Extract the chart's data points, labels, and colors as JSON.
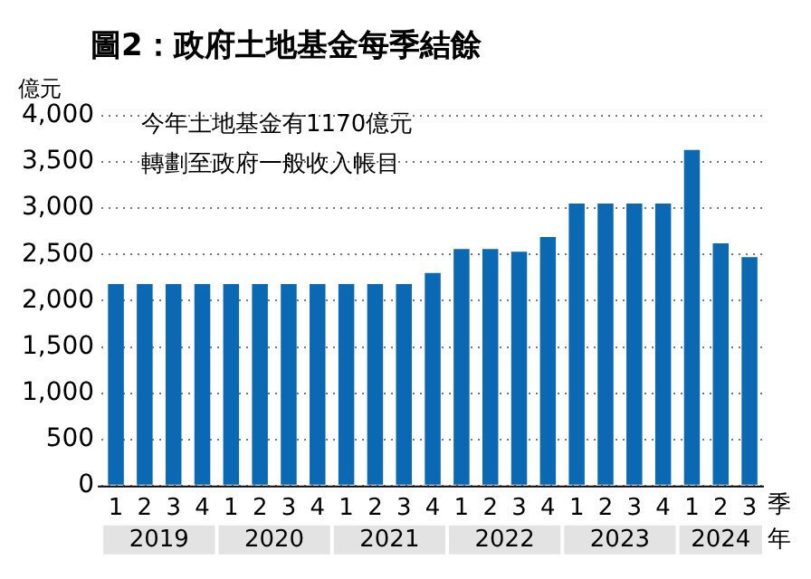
{
  "chart_data": {
    "type": "bar",
    "title": "圖2：政府土地基金每季結餘",
    "ylabel": "億元",
    "xlabel": "季",
    "categories": [
      "1",
      "2",
      "3",
      "4",
      "1",
      "2",
      "3",
      "4",
      "1",
      "2",
      "3",
      "4",
      "1",
      "2",
      "3",
      "4",
      "1",
      "2",
      "3",
      "4",
      "1",
      "2",
      "3"
    ],
    "values": [
      2180,
      2180,
      2180,
      2180,
      2180,
      2180,
      2180,
      2180,
      2180,
      2180,
      2180,
      2300,
      2560,
      2560,
      2530,
      2690,
      3050,
      3050,
      3050,
      3050,
      3630,
      2620,
      2470
    ],
    "color": "#0b68b3",
    "ylim": [
      0,
      4000
    ],
    "yticks": [
      {
        "value": 0,
        "label": "0"
      },
      {
        "value": 500,
        "label": "500"
      },
      {
        "value": 1000,
        "label": "1,000"
      },
      {
        "value": 1500,
        "label": "1,500"
      },
      {
        "value": 2000,
        "label": "2,000"
      },
      {
        "value": 2500,
        "label": "2,500"
      },
      {
        "value": 3000,
        "label": "3,000"
      },
      {
        "value": 3500,
        "label": "3,500"
      },
      {
        "value": 4000,
        "label": "4,000"
      }
    ],
    "grid": "y",
    "annotations": [
      "今年土地基金有1170億元",
      "轉劃至政府一般收入帳目",
      "2019",
      "2020",
      "2021",
      "2022",
      "2023",
      "2024",
      "年"
    ]
  }
}
